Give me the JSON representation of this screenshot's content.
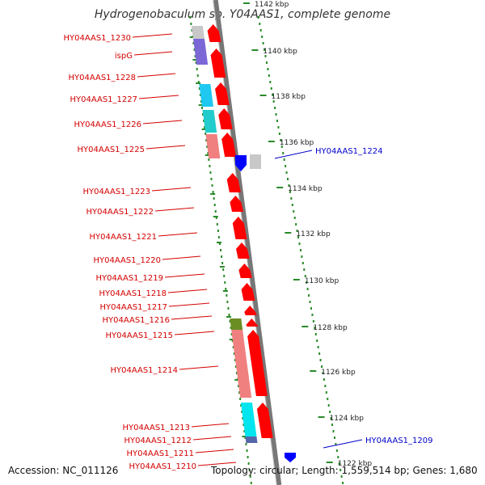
{
  "title": "Hydrogenobaculum sp. Y04AAS1, complete genome",
  "footer": {
    "accession": "Accession: NC_011126",
    "topology": "Topology: circular; Length: 1,559,514 bp; Genes: 1,680"
  },
  "colors": {
    "forward_label": "#d40000",
    "reverse_label": "#0000cc",
    "forward_gene": "#ff0000",
    "reverse_gene": "#0000ff",
    "tick": "#2a8a2a",
    "backbone": "#777777"
  },
  "kbp_ticks": [
    "1142 kbp",
    "1140 kbp",
    "1138 kbp",
    "1136 kbp",
    "1134 kbp",
    "1132 kbp",
    "1130 kbp",
    "1128 kbp",
    "1126 kbp",
    "1124 kbp",
    "1122 kbp"
  ],
  "forward_labels": [
    "HY04AAS1_1230",
    "ispG",
    "HY04AAS1_1228",
    "HY04AAS1_1227",
    "HY04AAS1_1226",
    "HY04AAS1_1225",
    "HY04AAS1_1223",
    "HY04AAS1_1222",
    "HY04AAS1_1221",
    "HY04AAS1_1220",
    "HY04AAS1_1219",
    "HY04AAS1_1218",
    "HY04AAS1_1217",
    "HY04AAS1_1216",
    "HY04AAS1_1215",
    "HY04AAS1_1214",
    "HY04AAS1_1213",
    "HY04AAS1_1212",
    "HY04AAS1_1211",
    "HY04AAS1_1210"
  ],
  "reverse_labels": [
    "HY04AAS1_1224",
    "HY04AAS1_1209"
  ]
}
